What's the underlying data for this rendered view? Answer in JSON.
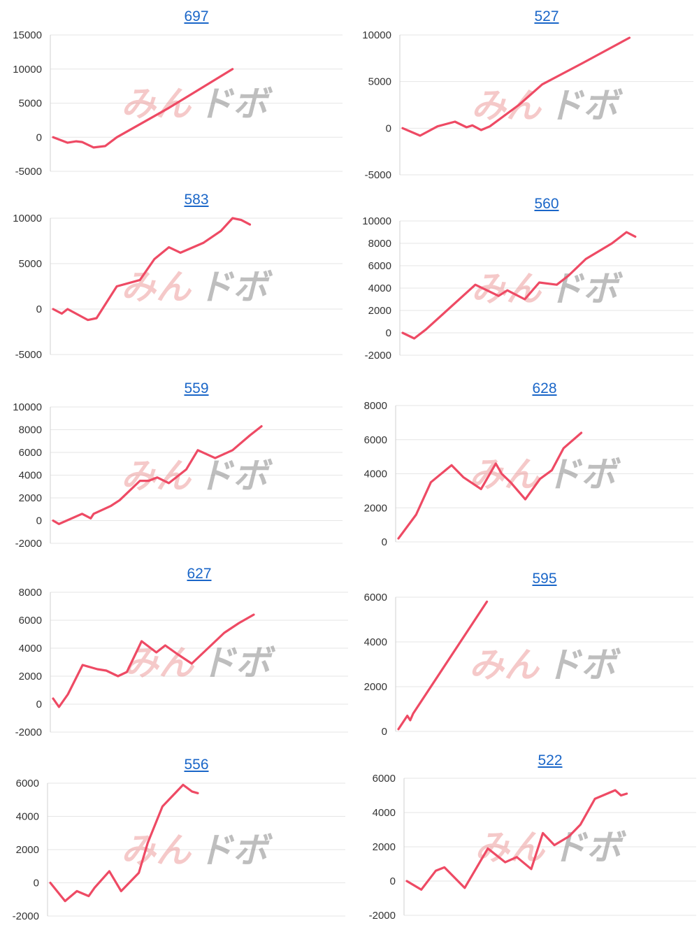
{
  "colors": {
    "line": "#ee4a64",
    "grid": "#e6e6e6",
    "title": "#1a66c8",
    "text": "#333333"
  },
  "watermark": {
    "part1": "みん",
    "part2": "ドボ"
  },
  "chart_data": [
    {
      "type": "line",
      "title": "697",
      "ylim": [
        -5000,
        15000
      ],
      "yticks": [
        15000,
        10000,
        5000,
        0,
        -5000
      ],
      "grid": true,
      "x": [
        0,
        5,
        8,
        10,
        14,
        18,
        22,
        40,
        62
      ],
      "y": [
        0,
        -800,
        -600,
        -700,
        -1500,
        -1300,
        0,
        4300,
        10000
      ]
    },
    {
      "type": "line",
      "title": "527",
      "ylim": [
        -5000,
        10000
      ],
      "yticks": [
        10000,
        5000,
        0,
        -5000
      ],
      "grid": true,
      "x": [
        0,
        6,
        12,
        18,
        22,
        24,
        27,
        30,
        40,
        48,
        62,
        78
      ],
      "y": [
        0,
        -800,
        200,
        700,
        100,
        300,
        -200,
        200,
        2500,
        4700,
        7000,
        9700
      ]
    },
    {
      "type": "line",
      "title": "583",
      "ylim": [
        -5000,
        10000
      ],
      "yticks": [
        10000,
        5000,
        0,
        -5000
      ],
      "grid": true,
      "x": [
        0,
        3,
        5,
        12,
        15,
        18,
        22,
        30,
        35,
        40,
        44,
        52,
        58,
        62,
        65,
        68
      ],
      "y": [
        0,
        -500,
        0,
        -1200,
        -1000,
        500,
        2500,
        3200,
        5500,
        6800,
        6200,
        7300,
        8600,
        10000,
        9800,
        9300
      ]
    },
    {
      "type": "line",
      "title": "560",
      "ylim": [
        -2000,
        10000
      ],
      "yticks": [
        10000,
        8000,
        6000,
        4000,
        2000,
        0,
        -2000
      ],
      "grid": true,
      "x": [
        0,
        4,
        8,
        25,
        33,
        36,
        42,
        47,
        53,
        57,
        63,
        72,
        77,
        80
      ],
      "y": [
        0,
        -500,
        300,
        4300,
        3300,
        3800,
        3000,
        4500,
        4300,
        5100,
        6600,
        8000,
        9000,
        8600
      ]
    },
    {
      "type": "line",
      "title": "559",
      "ylim": [
        -2000,
        10000
      ],
      "yticks": [
        10000,
        8000,
        6000,
        4000,
        2000,
        0,
        -2000
      ],
      "grid": true,
      "x": [
        0,
        2,
        10,
        13,
        14,
        20,
        23,
        30,
        33,
        36,
        40,
        46,
        50,
        56,
        62,
        68,
        72
      ],
      "y": [
        0,
        -300,
        600,
        200,
        600,
        1300,
        1800,
        3500,
        3500,
        3800,
        3300,
        4500,
        6200,
        5500,
        6200,
        7500,
        8300
      ]
    },
    {
      "type": "line",
      "title": "628",
      "ylim": [
        0,
        8000
      ],
      "yticks": [
        8000,
        6000,
        4000,
        2000,
        0
      ],
      "grid": true,
      "x": [
        0,
        6,
        11,
        18,
        22,
        28,
        33,
        35,
        38,
        43,
        48,
        52,
        56,
        62
      ],
      "y": [
        200,
        1600,
        3500,
        4500,
        3800,
        3100,
        4600,
        4000,
        3500,
        2500,
        3700,
        4200,
        5500,
        6400
      ]
    },
    {
      "type": "line",
      "title": "627",
      "ylim": [
        -2000,
        8000
      ],
      "yticks": [
        8000,
        6000,
        4000,
        2000,
        0,
        -2000
      ],
      "grid": true,
      "x": [
        0,
        2,
        5,
        10,
        15,
        18,
        22,
        25,
        30,
        35,
        38,
        42,
        47,
        53,
        58,
        63,
        68
      ],
      "y": [
        400,
        -200,
        700,
        2800,
        2500,
        2400,
        2000,
        2300,
        4500,
        3700,
        4200,
        3600,
        2900,
        4100,
        5100,
        5800,
        6400
      ]
    },
    {
      "type": "line",
      "title": "595",
      "ylim": [
        0,
        6000
      ],
      "yticks": [
        6000,
        4000,
        2000,
        0
      ],
      "grid": true,
      "x": [
        0,
        3,
        4,
        5,
        30
      ],
      "y": [
        100,
        700,
        500,
        800,
        5800
      ]
    },
    {
      "type": "line",
      "title": "556",
      "ylim": [
        -2000,
        6000
      ],
      "yticks": [
        6000,
        4000,
        2000,
        0,
        -2000
      ],
      "grid": true,
      "x": [
        0,
        5,
        9,
        13,
        15,
        20,
        24,
        30,
        33,
        38,
        45,
        48,
        50
      ],
      "y": [
        0,
        -1100,
        -500,
        -800,
        -300,
        700,
        -500,
        600,
        2400,
        4600,
        5900,
        5500,
        5400
      ]
    },
    {
      "type": "line",
      "title": "522",
      "ylim": [
        -2000,
        6000
      ],
      "yticks": [
        6000,
        4000,
        2000,
        0,
        -2000
      ],
      "grid": true,
      "x": [
        0,
        5,
        10,
        13,
        20,
        28,
        34,
        38,
        43,
        47,
        51,
        56,
        60,
        65,
        72,
        74,
        76
      ],
      "y": [
        0,
        -500,
        600,
        800,
        -400,
        1900,
        1100,
        1400,
        700,
        2800,
        2100,
        2600,
        3300,
        4800,
        5300,
        5000,
        5100
      ]
    }
  ]
}
